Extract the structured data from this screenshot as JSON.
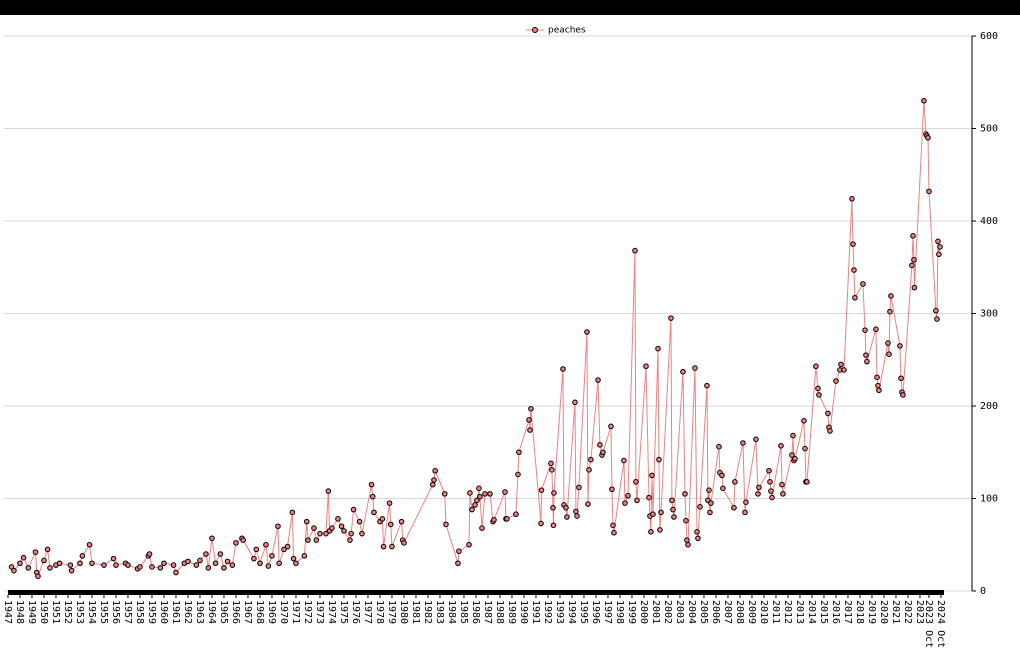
{
  "chart_data": {
    "type": "line",
    "x": [
      1947.3,
      1947.5,
      1948.0,
      1948.3,
      1948.7,
      1949.3,
      1949.4,
      1949.5,
      1950.0,
      1950.3,
      1950.5,
      1951.0,
      1951.3,
      1952.2,
      1952.3,
      1953.0,
      1953.2,
      1953.8,
      1954.0,
      1955.0,
      1955.8,
      1956.0,
      1956.8,
      1957.0,
      1957.8,
      1958.0,
      1958.7,
      1958.8,
      1959.0,
      1959.7,
      1960.0,
      1960.8,
      1961.0,
      1961.7,
      1962.0,
      1962.7,
      1963.0,
      1963.5,
      1963.7,
      1964.0,
      1964.3,
      1964.7,
      1965.0,
      1965.3,
      1965.7,
      1966.0,
      1966.5,
      1966.6,
      1967.5,
      1967.7,
      1968.0,
      1968.5,
      1968.7,
      1969.0,
      1969.5,
      1969.6,
      1970.0,
      1970.3,
      1970.7,
      1970.8,
      1971.0,
      1971.7,
      1971.9,
      1972.0,
      1972.5,
      1972.7,
      1973.0,
      1973.5,
      1973.7,
      1973.8,
      1974.0,
      1974.5,
      1974.8,
      1975.0,
      1975.5,
      1975.6,
      1975.8,
      1976.3,
      1976.5,
      1977.3,
      1977.4,
      1977.5,
      1978.0,
      1978.2,
      1978.3,
      1978.8,
      1978.9,
      1979.0,
      1979.8,
      1979.9,
      1980.0,
      1982.4,
      1982.5,
      1982.6,
      1983.4,
      1983.5,
      1984.5,
      1984.58,
      1985.42,
      1985.5,
      1985.67,
      1985.92,
      1986.08,
      1986.25,
      1986.33,
      1986.5,
      1986.75,
      1987.17,
      1987.42,
      1987.5,
      1988.42,
      1988.5,
      1988.58,
      1989.33,
      1989.5,
      1989.58,
      1990.42,
      1990.5,
      1990.58,
      1991.42,
      1991.46,
      1992.25,
      1992.33,
      1992.42,
      1992.46,
      1992.5,
      1993.25,
      1993.33,
      1993.5,
      1993.58,
      1994.25,
      1994.33,
      1994.42,
      1994.58,
      1995.25,
      1995.33,
      1995.42,
      1995.58,
      1996.17,
      1996.33,
      1996.5,
      1996.58,
      1997.25,
      1997.33,
      1997.42,
      1997.5,
      1998.33,
      1998.42,
      1998.67,
      1999.25,
      1999.33,
      1999.42,
      2000.17,
      2000.42,
      2000.5,
      2000.58,
      2000.67,
      2000.75,
      2001.17,
      2001.25,
      2001.33,
      2001.42,
      2002.25,
      2002.33,
      2002.42,
      2002.5,
      2003.25,
      2003.42,
      2003.5,
      2003.58,
      2003.67,
      2004.25,
      2004.42,
      2004.5,
      2004.67,
      2005.25,
      2005.33,
      2005.42,
      2005.5,
      2005.58,
      2006.25,
      2006.33,
      2006.5,
      2006.58,
      2007.5,
      2007.58,
      2008.25,
      2008.42,
      2008.5,
      2009.33,
      2009.5,
      2009.58,
      2010.42,
      2010.5,
      2010.58,
      2010.67,
      2011.42,
      2011.5,
      2011.58,
      2012.33,
      2012.42,
      2012.5,
      2012.58,
      2013.33,
      2013.42,
      2013.5,
      2013.58,
      2014.33,
      2014.5,
      2014.58,
      2015.33,
      2015.42,
      2015.5,
      2016.0,
      2016.33,
      2016.42,
      2016.67,
      2017.33,
      2017.42,
      2017.5,
      2017.58,
      2018.25,
      2018.42,
      2018.5,
      2018.58,
      2019.33,
      2019.42,
      2019.5,
      2019.58,
      2020.33,
      2020.42,
      2020.5,
      2020.58,
      2021.33,
      2021.42,
      2021.5,
      2021.58,
      2022.33,
      2022.42,
      2022.5,
      2022.54,
      2023.33,
      2023.5,
      2023.58,
      2023.67,
      2023.75,
      2024.33,
      2024.42,
      2024.5,
      2024.58,
      2024.67
    ],
    "series": [
      {
        "name": "peaches",
        "color": "#f08080",
        "values": [
          26,
          22,
          30,
          36,
          25,
          42,
          20,
          16,
          33,
          45,
          25,
          28,
          30,
          28,
          22,
          30,
          38,
          50,
          30,
          28,
          35,
          28,
          30,
          28,
          24,
          26,
          38,
          40,
          26,
          25,
          30,
          28,
          20,
          30,
          32,
          28,
          33,
          40,
          25,
          57,
          30,
          40,
          25,
          32,
          28,
          52,
          57,
          55,
          35,
          45,
          30,
          50,
          27,
          38,
          70,
          30,
          45,
          48,
          85,
          35,
          30,
          38,
          75,
          55,
          68,
          55,
          62,
          62,
          108,
          65,
          68,
          78,
          70,
          65,
          55,
          62,
          88,
          75,
          62,
          115,
          102,
          85,
          75,
          78,
          48,
          95,
          72,
          48,
          75,
          55,
          52,
          115,
          120,
          130,
          105,
          72,
          30,
          43,
          50,
          106,
          88,
          93,
          98,
          111,
          102,
          68,
          105,
          105,
          75,
          77,
          107,
          78,
          78,
          83,
          126,
          150,
          185,
          174,
          197,
          73,
          109,
          138,
          131,
          90,
          71,
          106,
          240,
          93,
          90,
          80,
          204,
          86,
          81,
          112,
          280,
          94,
          131,
          142,
          228,
          158,
          147,
          150,
          178,
          110,
          71,
          63,
          141,
          95,
          103,
          368,
          118,
          98,
          243,
          101,
          81,
          64,
          125,
          83,
          262,
          142,
          66,
          85,
          295,
          98,
          88,
          80,
          237,
          105,
          76,
          55,
          50,
          241,
          64,
          57,
          91,
          222,
          98,
          109,
          85,
          95,
          156,
          128,
          125,
          111,
          90,
          118,
          160,
          85,
          96,
          164,
          105,
          112,
          130,
          118,
          108,
          101,
          157,
          115,
          105,
          147,
          168,
          141,
          143,
          184,
          154,
          118,
          118,
          243,
          219,
          212,
          192,
          177,
          173,
          227,
          239,
          245,
          239,
          424,
          375,
          347,
          317,
          332,
          282,
          255,
          248,
          283,
          231,
          222,
          217,
          268,
          256,
          302,
          319,
          265,
          230,
          215,
          212,
          352,
          384,
          358,
          328,
          530,
          494,
          492,
          490,
          432,
          303,
          294,
          378,
          364,
          372
        ]
      }
    ],
    "xlim": [
      1946.67,
      2024.92
    ],
    "xticks": [
      1947,
      1948,
      1949,
      1950,
      1951,
      1952,
      1953,
      1954,
      1955,
      1956,
      1957,
      1958,
      1959,
      1960,
      1961,
      1962,
      1963,
      1964,
      1965,
      1966,
      1967,
      1968,
      1969,
      1970,
      1971,
      1972,
      1973,
      1974,
      1975,
      1976,
      1977,
      1978,
      1979,
      1980,
      1981,
      1982,
      1983,
      1984,
      1985,
      1986,
      1987,
      1988,
      1989,
      1990,
      1991,
      1992,
      1993,
      1994,
      1995,
      1996,
      1997,
      1998,
      1999,
      2000,
      2001,
      2002,
      2003,
      2004,
      2005,
      2006,
      2007,
      2008,
      2009,
      2010,
      2011,
      2012,
      2013,
      2014,
      2015,
      2016,
      2017,
      2018,
      2019,
      2020,
      2021,
      2022,
      2023,
      {
        "value": 2023.75,
        "label": "2023 Oct"
      },
      {
        "value": 2024.75,
        "label": "2024 Oct"
      }
    ],
    "ylim": [
      0,
      600
    ],
    "yticks": [
      0,
      100,
      200,
      300,
      400,
      500,
      600
    ],
    "grid": true,
    "legend": "top"
  }
}
